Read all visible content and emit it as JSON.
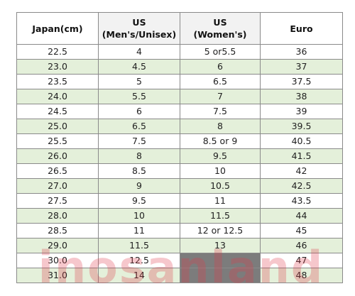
{
  "table": {
    "headers": {
      "japan": "Japan(cm)",
      "us_mens_line1": "US",
      "us_mens_line2": "(Men's/Unisex)",
      "us_womens_line1": "US",
      "us_womens_line2": "(Women's)",
      "euro": "Euro"
    },
    "rows": [
      {
        "japan": "22.5",
        "us_mens": "4",
        "us_womens": "5 or5.5",
        "euro": "36"
      },
      {
        "japan": "23.0",
        "us_mens": "4.5",
        "us_womens": "6",
        "euro": "37"
      },
      {
        "japan": "23.5",
        "us_mens": "5",
        "us_womens": "6.5",
        "euro": "37.5"
      },
      {
        "japan": "24.0",
        "us_mens": "5.5",
        "us_womens": "7",
        "euro": "38"
      },
      {
        "japan": "24.5",
        "us_mens": "6",
        "us_womens": "7.5",
        "euro": "39"
      },
      {
        "japan": "25.0",
        "us_mens": "6.5",
        "us_womens": "8",
        "euro": "39.5"
      },
      {
        "japan": "25.5",
        "us_mens": "7.5",
        "us_womens": "8.5 or 9",
        "euro": "40.5"
      },
      {
        "japan": "26.0",
        "us_mens": "8",
        "us_womens": "9.5",
        "euro": "41.5"
      },
      {
        "japan": "26.5",
        "us_mens": "8.5",
        "us_womens": "10",
        "euro": "42"
      },
      {
        "japan": "27.0",
        "us_mens": "9",
        "us_womens": "10.5",
        "euro": "42.5"
      },
      {
        "japan": "27.5",
        "us_mens": "9.5",
        "us_womens": "11",
        "euro": "43.5"
      },
      {
        "japan": "28.0",
        "us_mens": "10",
        "us_womens": "11.5",
        "euro": "44"
      },
      {
        "japan": "28.5",
        "us_mens": "11",
        "us_womens": "12 or 12.5",
        "euro": "45"
      },
      {
        "japan": "29.0",
        "us_mens": "11.5",
        "us_womens": "13",
        "euro": "46"
      },
      {
        "japan": "30.0",
        "us_mens": "12.5",
        "us_womens": "",
        "euro": "47"
      },
      {
        "japan": "31.0",
        "us_mens": "14",
        "us_womens": "",
        "euro": "48"
      }
    ]
  },
  "watermark": {
    "text": "inosanland"
  },
  "colors": {
    "row_stripe": "#e4f0da",
    "us_column_shade": "#ececec",
    "unavailable_cell": "#7c7c7c",
    "watermark": "#e03a4a"
  }
}
